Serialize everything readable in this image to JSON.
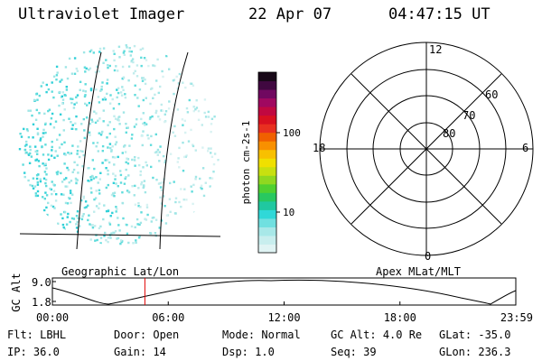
{
  "header": {
    "title": "Ultraviolet Imager",
    "date": "22 Apr 07",
    "time": "04:47:15 UT"
  },
  "colorbar": {
    "label": "photon cm-2s-1",
    "ticks": [
      {
        "label": "100",
        "value": 100
      },
      {
        "label": "10",
        "value": 10
      }
    ],
    "colors": [
      "#e0f4f4",
      "#c8eeee",
      "#a8e8e8",
      "#70e0e0",
      "#30d8d8",
      "#20c8a0",
      "#28c860",
      "#50d030",
      "#90d820",
      "#c8e010",
      "#f0e000",
      "#f8c000",
      "#f89000",
      "#f06000",
      "#e83020",
      "#d81020",
      "#c00840",
      "#a00860",
      "#700860",
      "#400840",
      "#180818"
    ]
  },
  "map_labels": {
    "left_panel": "Geographic Lat/Lon",
    "right_panel": "Apex MLat/MLT"
  },
  "polar": {
    "mlt_labels": {
      "top": "12",
      "right": "6",
      "bottom": "0",
      "left": "18"
    },
    "lat_labels": [
      "60",
      "70",
      "80"
    ]
  },
  "altitude_plot": {
    "ylabel": "GC Alt",
    "ytick_labels": [
      "9.0",
      "1.8"
    ],
    "time_ticks": [
      "00:00",
      "06:00",
      "12:00",
      "18:00",
      "23:59"
    ],
    "current_time_hours": 4.79
  },
  "info": {
    "row1": [
      {
        "label": "Flt:",
        "value": "LBHL"
      },
      {
        "label": "Door:",
        "value": "Open"
      },
      {
        "label": "Mode:",
        "value": "Normal"
      },
      {
        "label": "GC Alt:",
        "value": "4.0 Re"
      },
      {
        "label": "GLat:",
        "value": "-35.0"
      }
    ],
    "row2": [
      {
        "label": "IP:",
        "value": "36.0"
      },
      {
        "label": "Gain:",
        "value": "14"
      },
      {
        "label": "Dsp:",
        "value": "1.0"
      },
      {
        "label": "Seq:",
        "value": "39"
      },
      {
        "label": "GLon:",
        "value": "236.3"
      }
    ]
  }
}
